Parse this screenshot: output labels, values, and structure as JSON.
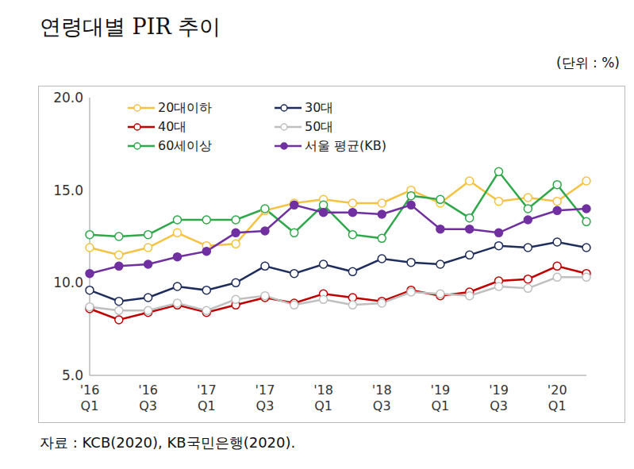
{
  "chart_data": {
    "type": "line",
    "title": "연령대별 PIR 추이",
    "subtitle": "(단위 : %)",
    "source": "자료 : KCB(2020), KB국민은행(2020).",
    "categories": [
      "'16 Q1",
      null,
      "'16 Q3",
      null,
      "'17 Q1",
      null,
      "'17 Q3",
      null,
      "'18 Q1",
      null,
      "'18 Q3",
      null,
      "'19 Q1",
      null,
      "'19 Q3",
      null,
      "'20 Q1",
      null
    ],
    "series": [
      {
        "name": "20대이하",
        "color": "#F5C242",
        "marker": "circle-open",
        "values": [
          11.9,
          11.5,
          11.9,
          12.7,
          12.0,
          12.1,
          13.9,
          14.3,
          14.5,
          14.3,
          14.3,
          15.0,
          14.3,
          15.5,
          14.4,
          14.6,
          14.4,
          15.5
        ]
      },
      {
        "name": "30대",
        "color": "#1F2D5C",
        "marker": "circle-open",
        "values": [
          9.6,
          9.0,
          9.2,
          9.8,
          9.6,
          10.0,
          10.9,
          10.5,
          11.0,
          10.6,
          11.3,
          11.1,
          11.0,
          11.5,
          12.0,
          11.9,
          12.2,
          11.9
        ]
      },
      {
        "name": "40대",
        "color": "#C00000",
        "marker": "circle-open",
        "values": [
          8.6,
          8.0,
          8.4,
          8.8,
          8.4,
          8.8,
          9.2,
          8.9,
          9.4,
          9.2,
          9.0,
          9.6,
          9.3,
          9.5,
          10.1,
          10.2,
          10.9,
          10.5
        ]
      },
      {
        "name": "50대",
        "color": "#BFBFBF",
        "marker": "circle-open",
        "values": [
          8.7,
          8.5,
          8.5,
          8.9,
          8.5,
          9.1,
          9.3,
          8.8,
          9.1,
          8.8,
          8.9,
          9.5,
          9.4,
          9.3,
          9.8,
          9.7,
          10.3,
          10.3
        ]
      },
      {
        "name": "60세이상",
        "color": "#2EA84A",
        "marker": "circle-open",
        "values": [
          12.6,
          12.5,
          12.6,
          13.4,
          13.4,
          13.4,
          14.0,
          12.7,
          14.2,
          12.6,
          12.4,
          14.7,
          14.5,
          13.5,
          16.0,
          14.0,
          15.3,
          13.3
        ]
      },
      {
        "name": "서울 평균(KB)",
        "color": "#7030A0",
        "marker": "circle",
        "values": [
          10.5,
          10.9,
          11.0,
          11.4,
          11.7,
          12.7,
          12.8,
          14.2,
          13.8,
          13.8,
          13.7,
          14.2,
          12.9,
          12.9,
          12.7,
          13.4,
          13.9,
          14.0
        ]
      }
    ],
    "ylim": [
      5,
      20
    ],
    "yticks": [
      {
        "value": 5,
        "label": "5.0"
      },
      {
        "value": 10,
        "label": "10.0"
      },
      {
        "value": 15,
        "label": "15.0"
      },
      {
        "value": 20,
        "label": "20.0"
      }
    ],
    "grid": false,
    "legend": "top-left"
  }
}
